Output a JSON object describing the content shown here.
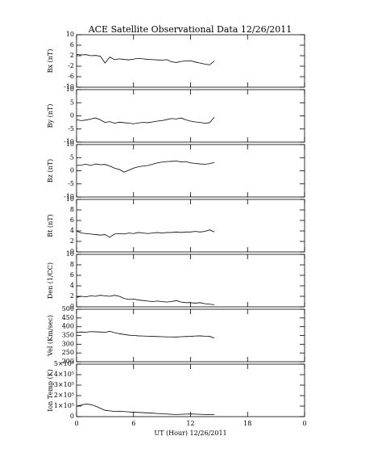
{
  "chart_data": [
    {
      "type": "line",
      "title": "ACE Satellite Observational Data   12/26/2011",
      "ylabel": "Bx (nT)",
      "color": "#000000",
      "xlim": [
        0,
        24
      ],
      "xticks": [
        0,
        6,
        12,
        18,
        {
          "value": 24,
          "label": "0"
        }
      ],
      "ylim": [
        -10,
        10
      ],
      "yticks": [
        10,
        6,
        2,
        -2,
        -6,
        -10
      ],
      "x": [
        0,
        0.5,
        1,
        1.5,
        2,
        2.5,
        3,
        3.5,
        4,
        4.5,
        5,
        5.5,
        6,
        6.5,
        7,
        7.5,
        8,
        8.5,
        9,
        9.5,
        10,
        10.5,
        11,
        11.5,
        12,
        12.5,
        13,
        13.5,
        14,
        14.5
      ],
      "values": [
        2.5,
        2.3,
        2.4,
        2.0,
        2.1,
        1.8,
        -0.8,
        1.5,
        0.5,
        0.8,
        0.6,
        0.4,
        0.7,
        1.0,
        0.8,
        0.6,
        0.5,
        0.4,
        0.3,
        0.5,
        -0.3,
        -0.6,
        -0.2,
        0.0,
        0.1,
        -0.4,
        -0.8,
        -1.2,
        -1.5,
        0.0
      ]
    },
    {
      "type": "line",
      "ylabel": "By (nT)",
      "color": "#000000",
      "xlim": [
        0,
        24
      ],
      "xticks": [
        0,
        6,
        12,
        18,
        24
      ],
      "ylim": [
        -10,
        10
      ],
      "yticks": [
        10,
        5,
        0,
        -5,
        -10
      ],
      "x": [
        0,
        0.5,
        1,
        1.5,
        2,
        2.5,
        3,
        3.5,
        4,
        4.5,
        5,
        5.5,
        6,
        6.5,
        7,
        7.5,
        8,
        8.5,
        9,
        9.5,
        10,
        10.5,
        11,
        11.5,
        12,
        12.5,
        13,
        13.5,
        14,
        14.5
      ],
      "values": [
        -1.5,
        -1.8,
        -1.6,
        -1.2,
        -0.8,
        -1.5,
        -2.5,
        -2.2,
        -2.8,
        -2.4,
        -2.6,
        -2.8,
        -3.0,
        -2.7,
        -2.5,
        -2.6,
        -2.3,
        -2.0,
        -1.8,
        -1.4,
        -1.0,
        -1.2,
        -0.8,
        -1.5,
        -2.0,
        -2.3,
        -2.5,
        -2.8,
        -2.6,
        -0.5
      ]
    },
    {
      "type": "line",
      "ylabel": "Bz (nT)",
      "color": "#000000",
      "xlim": [
        0,
        24
      ],
      "xticks": [
        0,
        6,
        12,
        18,
        24
      ],
      "ylim": [
        -10,
        10
      ],
      "yticks": [
        10,
        5,
        0,
        -5,
        -10
      ],
      "x": [
        0,
        0.5,
        1,
        1.5,
        2,
        2.5,
        3,
        3.5,
        4,
        4.5,
        5,
        5.5,
        6,
        6.5,
        7,
        7.5,
        8,
        8.5,
        9,
        9.5,
        10,
        10.5,
        11,
        11.5,
        12,
        12.5,
        13,
        13.5,
        14,
        14.5
      ],
      "values": [
        2.0,
        2.2,
        2.5,
        2.0,
        2.6,
        2.3,
        2.4,
        1.8,
        1.0,
        0.5,
        -0.5,
        0.2,
        1.0,
        1.5,
        1.8,
        2.0,
        2.5,
        3.0,
        3.3,
        3.5,
        3.6,
        3.7,
        3.4,
        3.5,
        3.0,
        2.8,
        2.6,
        2.5,
        2.7,
        3.2
      ]
    },
    {
      "type": "line",
      "ylabel": "Bt (nT)",
      "color": "#000000",
      "xlim": [
        0,
        24
      ],
      "xticks": [
        0,
        6,
        12,
        18,
        24
      ],
      "ylim": [
        0,
        10
      ],
      "yticks": [
        0,
        2,
        4,
        6,
        8,
        10
      ],
      "x": [
        0,
        0.5,
        1,
        1.5,
        2,
        2.5,
        3,
        3.5,
        4,
        4.5,
        5,
        5.5,
        6,
        6.5,
        7,
        7.5,
        8,
        8.5,
        9,
        9.5,
        10,
        10.5,
        11,
        11.5,
        12,
        12.5,
        13,
        13.5,
        14,
        14.5
      ],
      "values": [
        4.0,
        3.6,
        3.5,
        3.4,
        3.3,
        3.2,
        3.3,
        2.8,
        3.4,
        3.5,
        3.4,
        3.6,
        3.5,
        3.7,
        3.6,
        3.5,
        3.6,
        3.7,
        3.6,
        3.7,
        3.7,
        3.8,
        3.7,
        3.8,
        3.8,
        3.9,
        3.8,
        3.9,
        4.2,
        3.8
      ]
    },
    {
      "type": "line",
      "ylabel": "Den (1/CC)",
      "color": "#000000",
      "xlim": [
        0,
        24
      ],
      "xticks": [
        0,
        6,
        12,
        18,
        24
      ],
      "ylim": [
        0,
        10
      ],
      "yticks": [
        0,
        2,
        4,
        6,
        8,
        10
      ],
      "x": [
        0,
        0.5,
        1,
        1.5,
        2,
        2.5,
        3,
        3.5,
        4,
        4.5,
        5,
        5.5,
        6,
        6.5,
        7,
        7.5,
        8,
        8.5,
        9,
        9.5,
        10,
        10.5,
        11,
        11.5,
        12,
        12.5,
        13,
        13.5,
        14,
        14.5
      ],
      "values": [
        1.8,
        2.0,
        1.9,
        2.1,
        2.0,
        2.2,
        2.1,
        2.0,
        2.2,
        2.0,
        1.6,
        1.4,
        1.5,
        1.3,
        1.2,
        1.1,
        1.0,
        1.1,
        1.0,
        0.9,
        1.0,
        1.2,
        0.9,
        0.8,
        0.8,
        0.7,
        0.8,
        0.6,
        0.5,
        0.4
      ]
    },
    {
      "type": "line",
      "ylabel": "Vel (Km/sec)",
      "color": "#000000",
      "xlim": [
        0,
        24
      ],
      "xticks": [
        0,
        6,
        12,
        18,
        24
      ],
      "ylim": [
        200,
        500
      ],
      "yticks": [
        200,
        250,
        300,
        350,
        400,
        450,
        500
      ],
      "x": [
        0,
        0.5,
        1,
        1.5,
        2,
        2.5,
        3,
        3.5,
        4,
        4.5,
        5,
        5.5,
        6,
        6.5,
        7,
        7.5,
        8,
        8.5,
        9,
        9.5,
        10,
        10.5,
        11,
        11.5,
        12,
        12.5,
        13,
        13.5,
        14,
        14.5
      ],
      "values": [
        368,
        370,
        369,
        372,
        371,
        370,
        368,
        374,
        366,
        360,
        356,
        352,
        350,
        348,
        347,
        346,
        345,
        344,
        343,
        342,
        342,
        341,
        343,
        344,
        345,
        347,
        348,
        346,
        345,
        335
      ]
    },
    {
      "type": "line",
      "ylabel": "Ion Temp (K)",
      "xlabel": "UT (Hour)  12/26/2011",
      "color": "#000000",
      "xlim": [
        0,
        24
      ],
      "xticks": [
        0,
        6,
        12,
        18,
        {
          "value": 24,
          "label": "0"
        }
      ],
      "ylim": [
        0,
        500000
      ],
      "yticks": [
        0,
        {
          "value": 100000,
          "label": "1×10⁵"
        },
        {
          "value": 200000,
          "label": "2×10⁵"
        },
        {
          "value": 300000,
          "label": "3×10⁵"
        },
        {
          "value": 400000,
          "label": "4×10⁵"
        },
        {
          "value": 500000,
          "label": "5×10⁵"
        }
      ],
      "x": [
        0,
        0.5,
        1,
        1.5,
        2,
        2.5,
        3,
        3.5,
        4,
        4.5,
        5,
        5.5,
        6,
        6.5,
        7,
        7.5,
        8,
        8.5,
        9,
        9.5,
        10,
        10.5,
        11,
        11.5,
        12,
        12.5,
        13,
        13.5,
        14,
        14.5
      ],
      "values": [
        100000,
        110000,
        120000,
        115000,
        100000,
        80000,
        60000,
        55000,
        50000,
        52000,
        48000,
        45000,
        42000,
        40000,
        38000,
        35000,
        33000,
        30000,
        28000,
        25000,
        22000,
        20000,
        22000,
        24000,
        25000,
        24000,
        22000,
        20000,
        21000,
        18000
      ]
    }
  ]
}
